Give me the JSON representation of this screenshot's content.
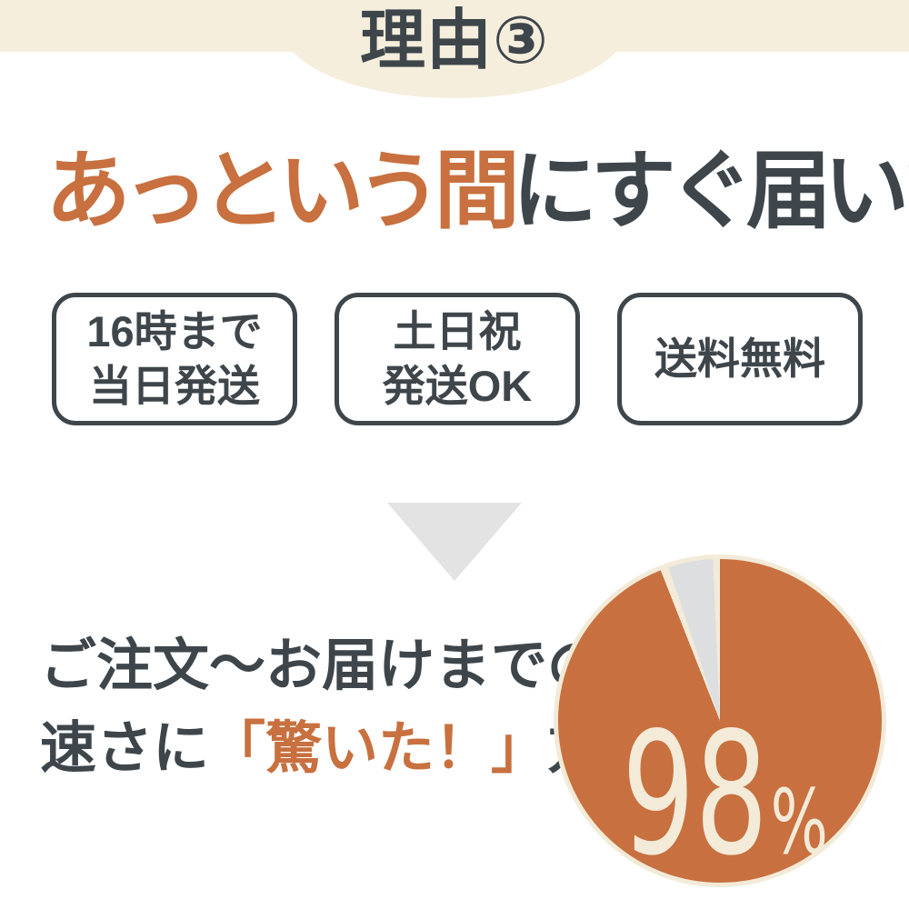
{
  "colors": {
    "cream_background": "#f5eedd",
    "accent_orange": "#c8703f",
    "dark_charcoal": "#3e464b",
    "arrow_gray": "#e3e3e3",
    "pie_remainder_gray": "#dcdee0",
    "pie_outline_and_label_cream": "#f3ead8"
  },
  "banner": {
    "title": "理由③"
  },
  "headline": {
    "highlight": "あっという間",
    "rest": "にすぐ届いた！"
  },
  "badges": [
    {
      "line1": "16時まで",
      "line2": "当日発送"
    },
    {
      "line1": "土日祝",
      "line2": "発送OK"
    },
    {
      "line1": "送料無料"
    }
  ],
  "caption": {
    "line1": "ご注文〜お届けまでの",
    "line2_prefix": "速さに",
    "line2_highlight": "「驚いた！」",
    "line2_suffix": "方"
  },
  "chart_data": {
    "type": "pie",
    "title": "ご注文〜お届けまでの速さに「驚いた！」方",
    "slices": [
      {
        "label": "驚いた！",
        "value": 98,
        "color": "#c8703f"
      },
      {
        "label": "other",
        "value": 2,
        "color": "#dcdee0"
      }
    ],
    "center_label": {
      "value": "98",
      "unit": "%"
    },
    "legend": "none",
    "start_angle_deg": 0,
    "direction": "clockwise"
  }
}
